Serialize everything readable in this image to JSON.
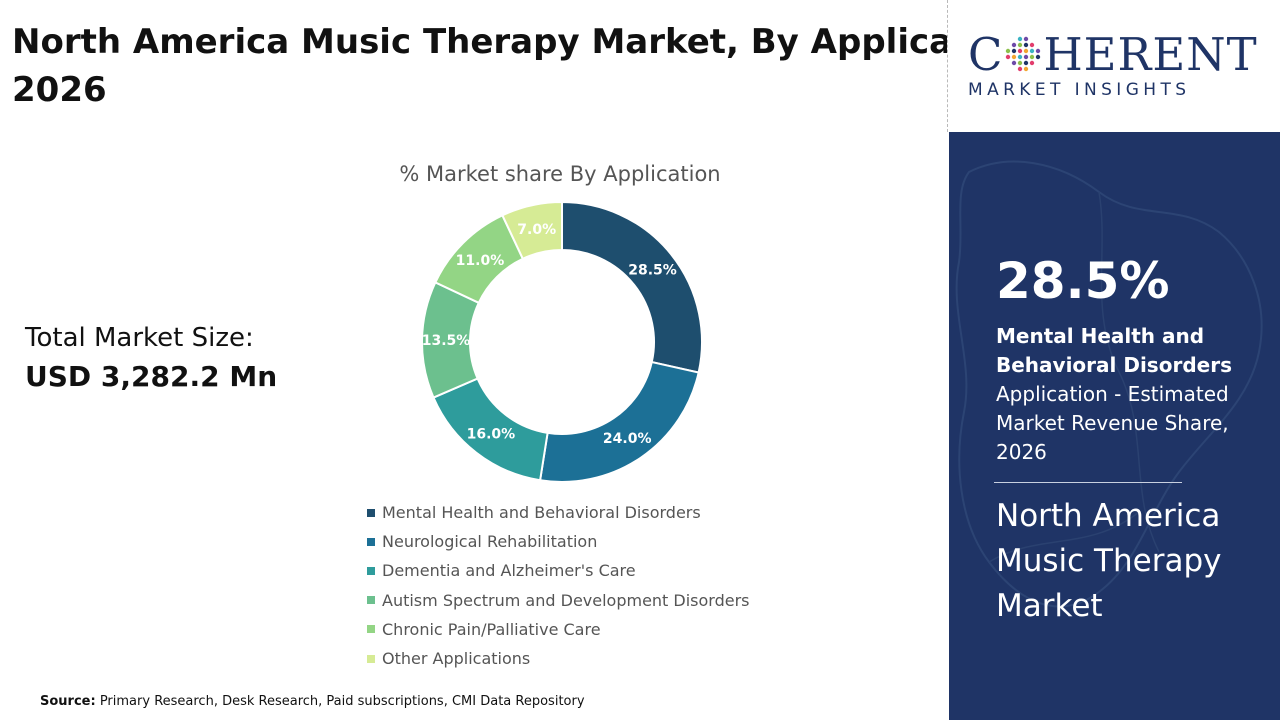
{
  "title": {
    "line1": "North America Music Therapy Market, By Application",
    "line2": "2026"
  },
  "logo": {
    "word_left": "C",
    "word_right": "HERENT",
    "subtitle": "MARKET INSIGHTS"
  },
  "total_market": {
    "label": "Total Market Size:",
    "value": "USD 3,282.2 Mn"
  },
  "chart_data": {
    "type": "pie",
    "title": "% Market share By Application",
    "categories": [
      "Mental Health and Behavioral Disorders",
      "Neurological Rehabilitation",
      "Dementia and Alzheimer's Care",
      "Autism Spectrum and Development Disorders",
      "Chronic Pain/Palliative Care",
      "Other Applications"
    ],
    "values": [
      28.5,
      24.0,
      16.0,
      13.5,
      11.0,
      7.0
    ],
    "data_labels": [
      "28.5%",
      "24.0%",
      "16.0%",
      "13.5%",
      "11.0%",
      "7.0%"
    ],
    "colors": [
      "#1e4e6e",
      "#1c7096",
      "#2e9c9c",
      "#6cc08e",
      "#93d585",
      "#d6eb95"
    ],
    "label_colors": [
      "#ffffff",
      "#ffffff",
      "#ffffff",
      "#ffffff",
      "#ffffff",
      "#ffffff"
    ],
    "legend_position": "bottom",
    "donut": true
  },
  "source": {
    "label": "Source:",
    "text": " Primary Research, Desk Research, Paid subscriptions, CMI Data Repository"
  },
  "panel": {
    "percent": "28.5%",
    "segment": "Mental Health and Behavioral Disorders",
    "description": "Application - Estimated Market Revenue Share, 2026",
    "market_name": "North America Music Therapy Market",
    "background": "#1f3466"
  }
}
